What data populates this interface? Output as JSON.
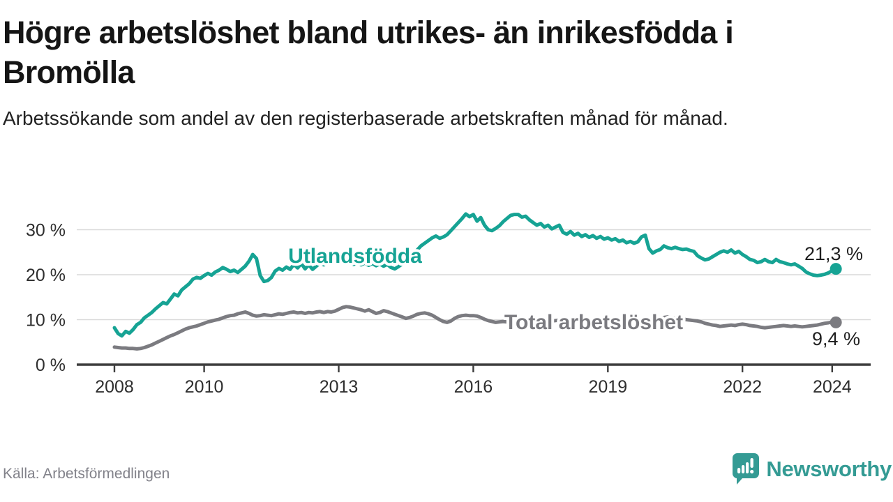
{
  "header": {
    "title": "Högre arbetslöshet bland utrikes- än inrikesfödda i Bromölla",
    "subtitle": "Arbetssökande som andel av den registerbaserade arbetskraften månad för månad."
  },
  "footer": {
    "source": "Källa: Arbetsförmedlingen",
    "brand": "Newsworthy"
  },
  "colors": {
    "teal_series": "#16a394",
    "gray_series": "#7b7b80",
    "brand_teal": "#349b94",
    "axis": "#3d3d3d",
    "grid": "#d9d9d9",
    "text_dark": "#1f1f1f"
  },
  "chart_data": {
    "type": "line",
    "unit": "%",
    "frequency": "monthly",
    "x_start": "2008-01",
    "x_end": "2024-02",
    "grid": "horizontal-only",
    "legend_position": "inline-labels",
    "ylim": [
      0,
      34
    ],
    "y_tick_values": [
      0,
      10,
      20,
      30
    ],
    "y_tick_labels": [
      "0 %",
      "10 %",
      "20 %",
      "30 %"
    ],
    "x_tick_years": [
      2008,
      2010,
      2013,
      2016,
      2019,
      2022,
      2024
    ],
    "series": [
      {
        "name": "Utlandsfödda",
        "color": "#16a394",
        "end_label": "21,3 %",
        "end_value": 21.3,
        "values": [
          8.2,
          6.9,
          6.4,
          7.4,
          7.0,
          7.8,
          8.9,
          9.4,
          10.4,
          11.0,
          11.6,
          12.4,
          13.1,
          13.8,
          13.5,
          14.6,
          15.7,
          15.3,
          16.6,
          17.3,
          18.0,
          19.0,
          19.4,
          19.2,
          19.8,
          20.3,
          19.9,
          20.6,
          21.0,
          21.6,
          21.2,
          20.7,
          21.0,
          20.5,
          21.2,
          21.9,
          23.0,
          24.5,
          23.6,
          19.8,
          18.5,
          18.7,
          19.4,
          20.8,
          21.4,
          21.0,
          21.7,
          21.2,
          22.3,
          21.5,
          22.5,
          21.3,
          22.2,
          21.2,
          21.9,
          22.6,
          22.2,
          22.8,
          22.4,
          22.9,
          22.5,
          23.0,
          22.4,
          22.8,
          22.3,
          22.7,
          22.2,
          22.6,
          22.1,
          22.5,
          22.0,
          22.4,
          21.9,
          22.3,
          21.6,
          21.3,
          21.8,
          22.4,
          23.0,
          23.8,
          24.6,
          25.5,
          26.4,
          27.0,
          27.6,
          28.2,
          28.6,
          28.1,
          28.4,
          28.9,
          29.8,
          30.7,
          31.6,
          32.5,
          33.5,
          32.9,
          33.4,
          31.9,
          32.7,
          31.0,
          30.0,
          29.8,
          30.3,
          30.9,
          31.8,
          32.5,
          33.2,
          33.4,
          33.4,
          32.8,
          33.0,
          32.2,
          31.6,
          31.0,
          31.4,
          30.6,
          31.0,
          30.2,
          30.6,
          31.0,
          29.4,
          29.0,
          29.6,
          28.8,
          29.2,
          28.5,
          28.9,
          28.3,
          28.7,
          28.1,
          28.5,
          27.9,
          28.2,
          27.7,
          28.0,
          27.4,
          27.7,
          27.1,
          27.4,
          27.0,
          27.3,
          28.4,
          28.8,
          25.8,
          24.8,
          25.3,
          25.6,
          26.4,
          26.0,
          25.8,
          26.1,
          25.8,
          25.6,
          25.7,
          25.4,
          25.2,
          24.2,
          23.7,
          23.3,
          23.5,
          24.0,
          24.5,
          25.0,
          25.3,
          25.0,
          25.5,
          24.8,
          25.2,
          24.5,
          24.0,
          23.4,
          23.2,
          22.7,
          22.9,
          23.4,
          22.9,
          22.7,
          23.4,
          22.9,
          22.7,
          22.4,
          22.2,
          22.4,
          21.9,
          21.4,
          20.6,
          20.2,
          19.9,
          19.8,
          19.9,
          20.1,
          20.4,
          20.9,
          21.3
        ]
      },
      {
        "name": "Total arbetslöshet",
        "color": "#7b7b80",
        "end_label": "9,4 %",
        "end_value": 9.4,
        "values": [
          3.9,
          3.8,
          3.7,
          3.7,
          3.6,
          3.6,
          3.5,
          3.6,
          3.8,
          4.1,
          4.4,
          4.8,
          5.2,
          5.6,
          6.0,
          6.4,
          6.7,
          7.1,
          7.5,
          7.9,
          8.2,
          8.4,
          8.6,
          8.9,
          9.2,
          9.5,
          9.7,
          9.9,
          10.1,
          10.4,
          10.7,
          10.9,
          11.0,
          11.3,
          11.5,
          11.7,
          11.4,
          11.0,
          10.8,
          10.9,
          11.1,
          11.0,
          10.9,
          11.1,
          11.3,
          11.2,
          11.4,
          11.6,
          11.7,
          11.5,
          11.6,
          11.4,
          11.6,
          11.5,
          11.7,
          11.8,
          11.6,
          11.8,
          11.7,
          11.9,
          12.3,
          12.7,
          12.9,
          12.8,
          12.6,
          12.4,
          12.2,
          11.9,
          12.2,
          11.8,
          11.4,
          11.6,
          12.0,
          11.8,
          11.5,
          11.2,
          10.9,
          10.6,
          10.3,
          10.5,
          10.8,
          11.2,
          11.4,
          11.5,
          11.3,
          11.0,
          10.5,
          10.0,
          9.6,
          9.4,
          9.7,
          10.3,
          10.7,
          10.9,
          11.0,
          10.9,
          10.9,
          10.8,
          10.5,
          10.1,
          9.8,
          9.6,
          9.4,
          9.5,
          9.6,
          9.5,
          9.7,
          9.8,
          9.8,
          9.9,
          9.8,
          9.7,
          9.6,
          9.5,
          9.6,
          9.7,
          9.8,
          9.7,
          9.8,
          9.9,
          9.8,
          9.7,
          9.6,
          9.5,
          9.4,
          9.3,
          9.4,
          9.5,
          9.4,
          9.3,
          9.4,
          9.5,
          9.6,
          9.5,
          9.4,
          9.5,
          9.6,
          9.5,
          9.6,
          9.7,
          9.8,
          9.9,
          9.8,
          9.9,
          10.0,
          10.1,
          10.3,
          10.5,
          10.6,
          10.5,
          10.4,
          10.3,
          10.2,
          10.0,
          9.9,
          9.8,
          9.7,
          9.5,
          9.2,
          9.0,
          8.8,
          8.7,
          8.5,
          8.6,
          8.7,
          8.8,
          8.7,
          8.9,
          9.0,
          8.9,
          8.7,
          8.6,
          8.5,
          8.3,
          8.2,
          8.3,
          8.4,
          8.5,
          8.6,
          8.7,
          8.6,
          8.5,
          8.6,
          8.5,
          8.4,
          8.5,
          8.6,
          8.7,
          8.8,
          9.0,
          9.2,
          9.3,
          9.5,
          9.4
        ]
      }
    ]
  }
}
